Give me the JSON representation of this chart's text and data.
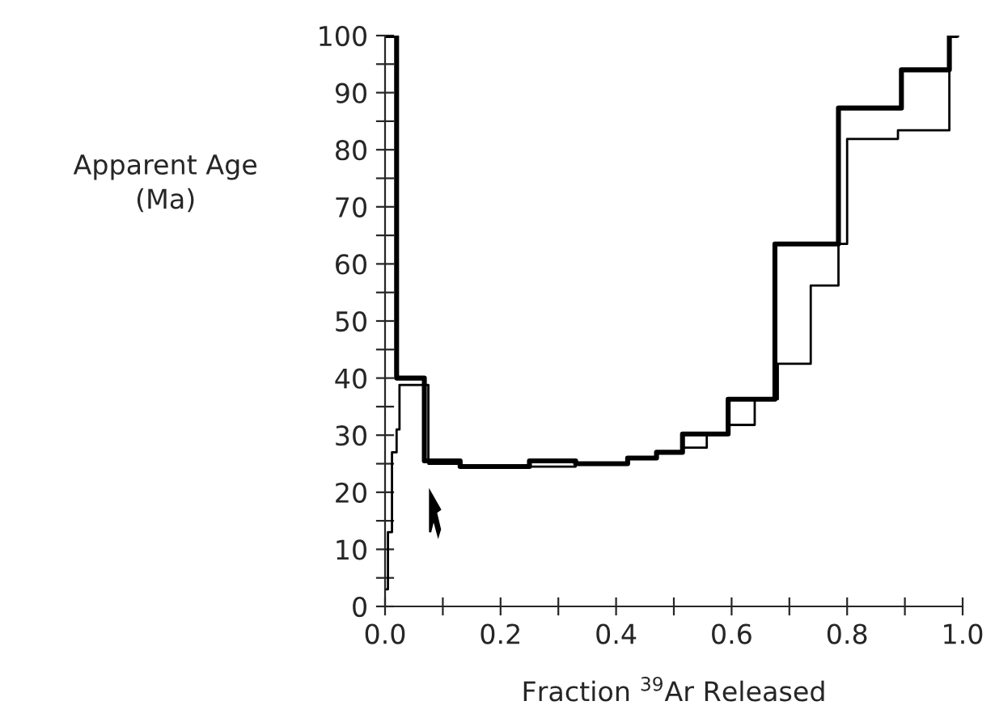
{
  "chart_data": {
    "type": "step",
    "xlabel": "Fraction $^{39}$Ar Released",
    "ylabel": "Apparent Age\n(Ma)",
    "series": [
      {
        "color": "#000000",
        "x": [
          0,
          0.02,
          0.068,
          0.13,
          0.25,
          0.33,
          0.42,
          0.47,
          0.515,
          0.594,
          0.675,
          0.785,
          0.894,
          0.977,
          0.99
        ],
        "values": [
          100,
          40,
          25.5,
          24.5,
          25.5,
          25,
          26,
          27,
          30.2,
          36.3,
          63.5,
          87.3,
          94,
          100,
          100
        ]
      },
      {
        "color": "#000000",
        "x": [
          0,
          0.005,
          0.012,
          0.02,
          0.025,
          0.075,
          0.13,
          0.25,
          0.33,
          0.42,
          0.47,
          0.515,
          0.557,
          0.594,
          0.64,
          0.68,
          0.737,
          0.785,
          0.8,
          0.888,
          0.977,
          0.99
        ],
        "values": [
          3,
          13,
          27,
          31,
          38.8,
          25,
          24.5,
          24.5,
          25,
          26,
          27,
          27.8,
          30.2,
          31.8,
          36.3,
          42.5,
          56.2,
          63.5,
          81.9,
          83.4,
          100,
          100
        ]
      }
    ],
    "xlim": [
      0,
      1.0
    ],
    "ylim": [
      0,
      100
    ],
    "xticks": [
      {
        "value": 0,
        "label": "0.0"
      },
      {
        "value": 0.1,
        "label": null
      },
      {
        "value": 0.2,
        "label": "0.2"
      },
      {
        "value": 0.3,
        "label": null
      },
      {
        "value": 0.4,
        "label": "0.4"
      },
      {
        "value": 0.5,
        "label": null
      },
      {
        "value": 0.6,
        "label": "0.6"
      },
      {
        "value": 0.7,
        "label": null
      },
      {
        "value": 0.8,
        "label": "0.8"
      },
      {
        "value": 0.9,
        "label": null
      },
      {
        "value": 1.0,
        "label": "1.0"
      }
    ],
    "yticks": [
      0,
      {
        "value": 5,
        "label": null
      },
      10,
      {
        "value": 15,
        "label": null
      },
      20,
      {
        "value": 25,
        "label": null
      },
      30,
      {
        "value": 35,
        "label": null
      },
      40,
      {
        "value": 45,
        "label": null
      },
      50,
      {
        "value": 55,
        "label": null
      },
      60,
      {
        "value": 65,
        "label": null
      },
      70,
      {
        "value": 75,
        "label": null
      },
      80,
      {
        "value": 85,
        "label": null
      },
      90,
      {
        "value": 95,
        "label": null
      },
      100
    ],
    "grid": false,
    "legend": false
  }
}
